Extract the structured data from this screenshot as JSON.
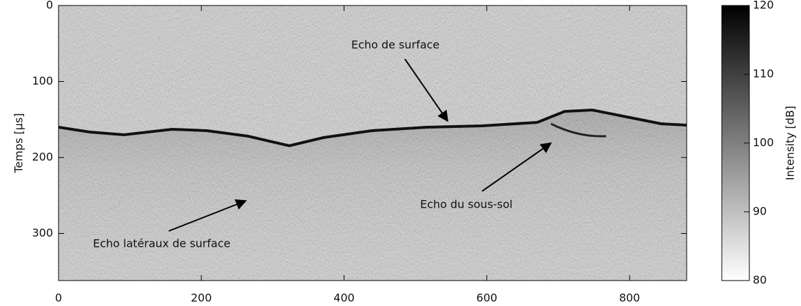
{
  "chart_data": {
    "type": "radargram",
    "ylabel": "Temps [μs]",
    "xlim": [
      0,
      880
    ],
    "xticks": [
      0,
      200,
      400,
      600,
      800
    ],
    "ylim": [
      362,
      0
    ],
    "yticks": [
      0,
      100,
      200,
      300
    ],
    "colorbar": {
      "label": "Intensity [dB]",
      "lim": [
        80,
        120
      ],
      "ticks": [
        80,
        90,
        100,
        110,
        120
      ],
      "colors": [
        "#ffffff",
        "#000000"
      ]
    },
    "annotations": [
      {
        "text": "Echo de surface"
      },
      {
        "text": "Echo du sous-sol"
      },
      {
        "text": "Echo latéraux de surface"
      }
    ]
  }
}
